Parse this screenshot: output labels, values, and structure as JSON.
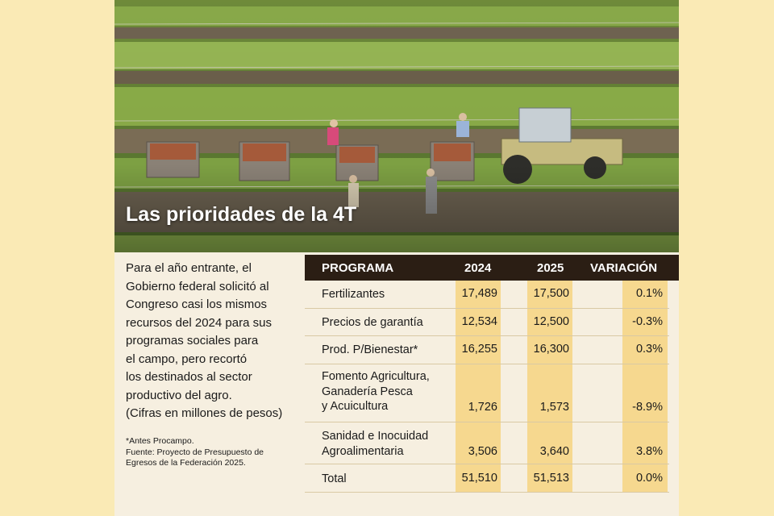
{
  "title": "Las prioridades de la 4T",
  "intro": [
    "Para el año entrante, el",
    "Gobierno federal solicitó al",
    "Congreso casi los mismos",
    "recursos del 2024 para sus",
    "programas sociales para",
    "el campo, pero recortó",
    "los destinados al sector",
    "productivo del agro.",
    "(Cifras en millones de pesos)"
  ],
  "notes": [
    "*Antes Procampo.",
    "Fuente: Proyecto de Presupuesto de",
    "Egresos de la Federación 2025."
  ],
  "table": {
    "headers": {
      "programa": "PROGRAMA",
      "y2024": "2024",
      "y2025": "2025",
      "variacion": "VARIACIÓN"
    },
    "rows": [
      {
        "programa": [
          "Fertilizantes"
        ],
        "y2024": "17,489",
        "y2025": "17,500",
        "variacion": "0.1%"
      },
      {
        "programa": [
          "Precios de garantía"
        ],
        "y2024": "12,534",
        "y2025": "12,500",
        "variacion": "-0.3%"
      },
      {
        "programa": [
          "Prod. P/Bienestar*"
        ],
        "y2024": "16,255",
        "y2025": "16,300",
        "variacion": "0.3%"
      },
      {
        "programa": [
          "Fomento Agricultura,",
          "Ganadería Pesca",
          "y Acuicultura"
        ],
        "y2024": "1,726",
        "y2025": "1,573",
        "variacion": "-8.9%"
      },
      {
        "programa": [
          "Sanidad e Inocuidad",
          "Agroalimentaria"
        ],
        "y2024": "3,506",
        "y2025": "3,640",
        "variacion": "3.8%"
      },
      {
        "programa": [
          "Total"
        ],
        "y2024": "51,510",
        "y2025": "51,513",
        "variacion": "0.0%"
      }
    ]
  },
  "colors": {
    "page_bg": "#faeab5",
    "header_bg": "#2b1e14",
    "highlight": "#f6d88f"
  }
}
